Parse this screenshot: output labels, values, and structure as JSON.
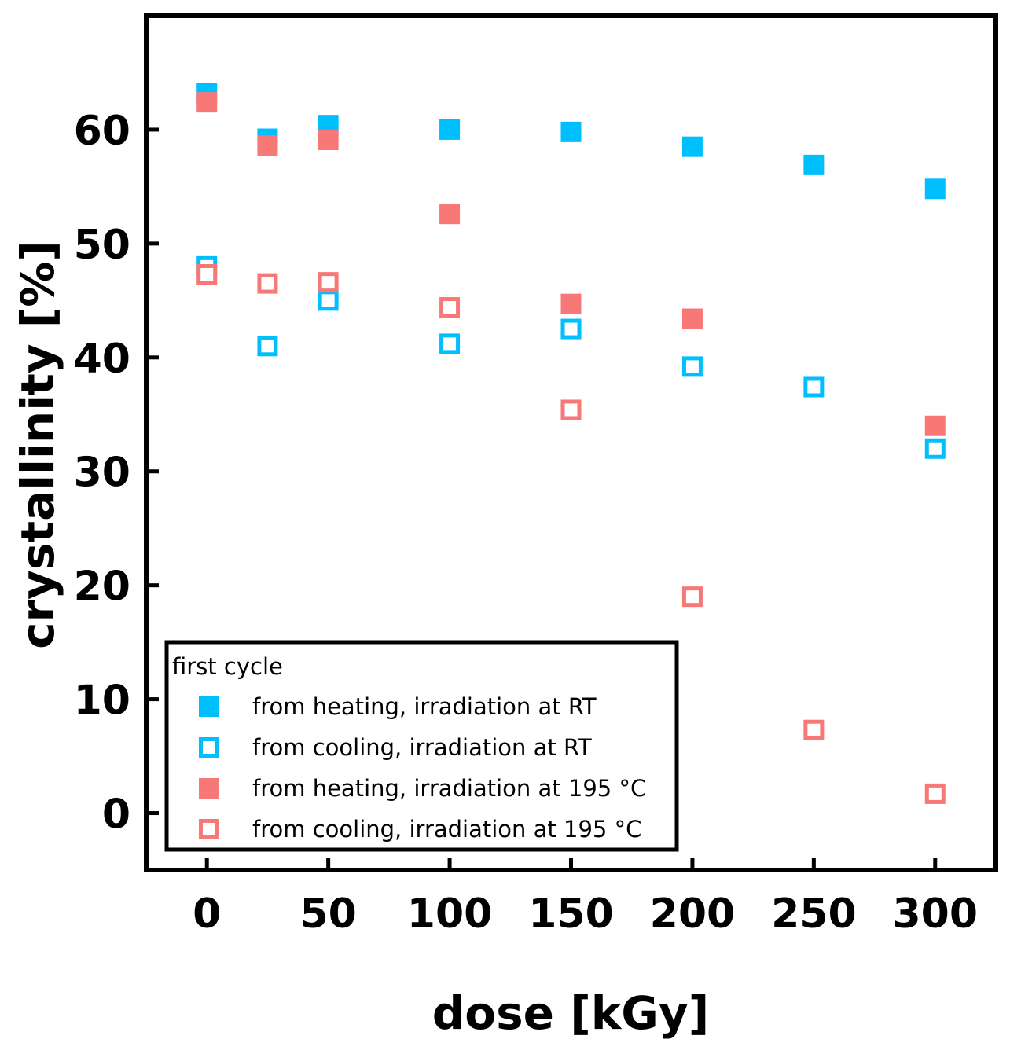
{
  "chart_data": {
    "type": "scatter",
    "xlabel": "dose [kGy]",
    "ylabel": "crystallinity [%]",
    "xlim": [
      -25,
      325
    ],
    "ylim": [
      -5,
      70
    ],
    "xticks": [
      0,
      50,
      100,
      150,
      200,
      250,
      300
    ],
    "yticks": [
      0,
      10,
      20,
      30,
      40,
      50,
      60
    ],
    "grid": false,
    "legend": {
      "title": "first cycle",
      "placement": "bottom-left"
    },
    "series": [
      {
        "name": "from heating, irradiation at RT",
        "marker": "filled-square",
        "color": "#00bfff",
        "x": [
          0,
          25,
          50,
          100,
          150,
          200,
          250,
          300
        ],
        "y": [
          63.2,
          59.2,
          60.4,
          60.0,
          59.8,
          58.5,
          56.9,
          54.8
        ]
      },
      {
        "name": "from cooling,  irradiation at RT",
        "marker": "open-square",
        "color": "#00bfff",
        "x": [
          0,
          25,
          50,
          100,
          150,
          200,
          250,
          300
        ],
        "y": [
          48.0,
          41.0,
          45.0,
          41.2,
          42.5,
          39.2,
          37.4,
          32.0
        ]
      },
      {
        "name": "from heating, irradiation at 195 °C",
        "marker": "filled-square",
        "color": "#f87878",
        "x": [
          0,
          25,
          50,
          100,
          150,
          200,
          300
        ],
        "y": [
          62.4,
          58.6,
          59.1,
          52.6,
          44.7,
          43.4,
          34.0
        ]
      },
      {
        "name": "from cooling,  irradiation at 195 °C",
        "marker": "open-square",
        "color": "#f87878",
        "x": [
          0,
          25,
          50,
          100,
          150,
          200,
          250,
          300
        ],
        "y": [
          47.3,
          46.5,
          46.6,
          44.4,
          35.4,
          19.0,
          7.3,
          1.7
        ]
      }
    ]
  }
}
